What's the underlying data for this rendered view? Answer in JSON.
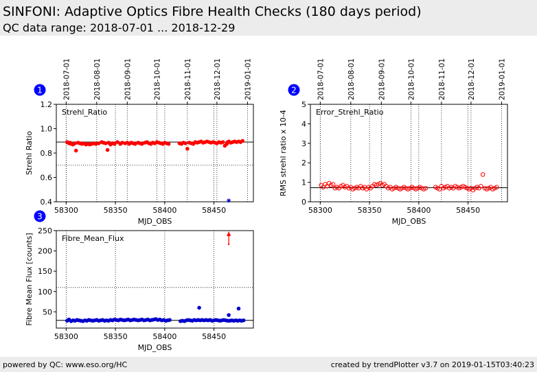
{
  "page": {
    "title": "SINFONI: Adaptive Optics Fibre Health Checks (180 days period)",
    "subtitle": "QC data range: 2018-07-01 ... 2018-12-29",
    "footer_left": "powered by QC: www.eso.org/HC",
    "footer_right": "created by trendPlotter v3.7 on 2019-01-15T03:40:23"
  },
  "colors": {
    "red": "#ff0000",
    "blue": "#0000cc",
    "badge": "#0000ff",
    "header_bg": "#ececec"
  },
  "chart_data": [
    {
      "panel": "1",
      "type": "scatter",
      "inner_label": "Strehl_Ratio",
      "xlabel": "MJD_OBS",
      "ylabel": "Strehl Ratio",
      "xlim": [
        58290,
        58490
      ],
      "ylim": [
        0.4,
        1.2
      ],
      "yticks": [
        0.4,
        0.6,
        0.8,
        1.0,
        1.2
      ],
      "ytick_labels": [
        "0.4",
        "0.6",
        "0.8",
        "1.0",
        "1.2"
      ],
      "xticks": [
        58300,
        58350,
        58400,
        58450
      ],
      "date_ticks": [
        {
          "label": "2018-07-01",
          "mjd": 58300
        },
        {
          "label": "2018-08-01",
          "mjd": 58331
        },
        {
          "label": "2018-09-01",
          "mjd": 58362
        },
        {
          "label": "2018-10-01",
          "mjd": 58392
        },
        {
          "label": "2018-11-01",
          "mjd": 58423
        },
        {
          "label": "2018-12-01",
          "mjd": 58453
        },
        {
          "label": "2019-01-01",
          "mjd": 58484
        }
      ],
      "ref_lines": [
        0.89,
        0.7
      ],
      "grid": true,
      "series": [
        {
          "marker": "filled-circle",
          "color": "#ff0000",
          "x": [
            58301,
            58302,
            58303,
            58304,
            58305,
            58307,
            58309,
            58310,
            58312,
            58314,
            58316,
            58318,
            58320,
            58322,
            58324,
            58326,
            58328,
            58330,
            58333,
            58336,
            58338,
            58340,
            58342,
            58343,
            58345,
            58347,
            58349,
            58352,
            58355,
            58357,
            58360,
            58362,
            58364,
            58366,
            58368,
            58370,
            58373,
            58375,
            58377,
            58380,
            58382,
            58384,
            58386,
            58388,
            58390,
            58392,
            58394,
            58396,
            58398,
            58400,
            58402,
            58404,
            58415,
            58417,
            58419,
            58421,
            58423,
            58425,
            58427,
            58429,
            58431,
            58433,
            58435,
            58437,
            58439,
            58441,
            58443,
            58445,
            58447,
            58449,
            58451,
            58453,
            58455,
            58457,
            58459,
            58461,
            58463,
            58464,
            58465,
            58467,
            58469,
            58471,
            58473,
            58475,
            58477,
            58479
          ],
          "y": [
            0.89,
            0.885,
            0.88,
            0.885,
            0.875,
            0.87,
            0.88,
            0.82,
            0.885,
            0.88,
            0.875,
            0.88,
            0.87,
            0.875,
            0.87,
            0.875,
            0.88,
            0.875,
            0.88,
            0.89,
            0.885,
            0.88,
            0.825,
            0.885,
            0.87,
            0.88,
            0.875,
            0.89,
            0.875,
            0.885,
            0.88,
            0.885,
            0.875,
            0.885,
            0.88,
            0.875,
            0.885,
            0.88,
            0.875,
            0.885,
            0.89,
            0.88,
            0.875,
            0.885,
            0.88,
            0.89,
            0.885,
            0.88,
            0.875,
            0.885,
            0.88,
            0.875,
            0.88,
            0.875,
            0.885,
            0.88,
            0.835,
            0.885,
            0.88,
            0.875,
            0.89,
            0.885,
            0.89,
            0.895,
            0.885,
            0.89,
            0.895,
            0.89,
            0.885,
            0.89,
            0.885,
            0.88,
            0.89,
            0.885,
            0.89,
            0.86,
            0.875,
            0.89,
            0.895,
            0.885,
            0.89,
            0.895,
            0.89,
            0.895,
            0.89,
            0.9
          ]
        },
        {
          "marker": "asterisk",
          "color": "#0000cc",
          "x": [
            58465
          ],
          "y": [
            0.41
          ]
        }
      ]
    },
    {
      "panel": "2",
      "type": "scatter",
      "inner_label": "Error_Strehl_Ratio",
      "xlabel": "MJD_OBS",
      "ylabel": "RMS strehl ratio x 10-4",
      "xlim": [
        58290,
        58490
      ],
      "ylim": [
        0,
        5
      ],
      "yticks": [
        0,
        1,
        2,
        3,
        4,
        5
      ],
      "ytick_labels": [
        "0",
        "1",
        "2",
        "3",
        "4",
        "5"
      ],
      "xticks": [
        58300,
        58350,
        58400,
        58450
      ],
      "date_ticks": [
        {
          "label": "2018-07-01",
          "mjd": 58300
        },
        {
          "label": "2018-08-01",
          "mjd": 58331
        },
        {
          "label": "2018-09-01",
          "mjd": 58362
        },
        {
          "label": "2018-10-01",
          "mjd": 58392
        },
        {
          "label": "2018-11-01",
          "mjd": 58423
        },
        {
          "label": "2018-12-01",
          "mjd": 58453
        },
        {
          "label": "2019-01-01",
          "mjd": 58484
        }
      ],
      "ref_lines": [
        0.72
      ],
      "grid": true,
      "series": [
        {
          "marker": "open-circle",
          "color": "#ff0000",
          "x": [
            58301,
            58303,
            58305,
            58307,
            58309,
            58311,
            58313,
            58315,
            58317,
            58319,
            58321,
            58323,
            58325,
            58327,
            58329,
            58331,
            58333,
            58335,
            58337,
            58339,
            58341,
            58343,
            58345,
            58347,
            58349,
            58351,
            58353,
            58355,
            58357,
            58359,
            58361,
            58363,
            58365,
            58367,
            58369,
            58371,
            58373,
            58375,
            58377,
            58379,
            58381,
            58383,
            58385,
            58387,
            58389,
            58391,
            58393,
            58395,
            58397,
            58399,
            58401,
            58403,
            58405,
            58407,
            58417,
            58419,
            58421,
            58423,
            58425,
            58427,
            58429,
            58431,
            58433,
            58435,
            58437,
            58439,
            58441,
            58443,
            58445,
            58447,
            58449,
            58451,
            58453,
            58455,
            58457,
            58459,
            58461,
            58463,
            58465,
            58467,
            58469,
            58471,
            58473,
            58475,
            58477,
            58479
          ],
          "y": [
            0.85,
            0.75,
            0.9,
            0.8,
            0.95,
            0.85,
            0.9,
            0.7,
            0.75,
            0.7,
            0.8,
            0.85,
            0.75,
            0.8,
            0.7,
            0.75,
            0.65,
            0.7,
            0.75,
            0.7,
            0.8,
            0.7,
            0.75,
            0.65,
            0.75,
            0.7,
            0.8,
            0.9,
            0.85,
            0.9,
            0.95,
            0.85,
            0.9,
            0.8,
            0.7,
            0.75,
            0.65,
            0.7,
            0.75,
            0.7,
            0.65,
            0.7,
            0.75,
            0.7,
            0.65,
            0.7,
            0.75,
            0.7,
            0.65,
            0.7,
            0.75,
            0.7,
            0.65,
            0.7,
            0.75,
            0.7,
            0.65,
            0.8,
            0.7,
            0.75,
            0.8,
            0.7,
            0.75,
            0.7,
            0.8,
            0.75,
            0.7,
            0.75,
            0.8,
            0.75,
            0.7,
            0.65,
            0.7,
            0.6,
            0.7,
            0.75,
            0.7,
            0.8,
            1.4,
            0.7,
            0.65,
            0.7,
            0.75,
            0.65,
            0.7,
            0.75
          ]
        }
      ]
    },
    {
      "panel": "3",
      "type": "scatter",
      "inner_label": "Fibre_Mean_Flux",
      "xlabel": "MJD_OBS",
      "ylabel": "Fibre Mean Flux [counts]",
      "xlim": [
        58290,
        58490
      ],
      "ylim": [
        10,
        250
      ],
      "yticks": [
        50,
        100,
        150,
        200,
        250
      ],
      "ytick_labels": [
        "50",
        "100",
        "150",
        "200",
        "250"
      ],
      "xticks": [
        58300,
        58350,
        58400,
        58450
      ],
      "ref_lines": [
        110,
        29
      ],
      "grid": true,
      "series": [
        {
          "marker": "filled-circle",
          "color": "#0000cc",
          "x": [
            58301,
            58302,
            58303,
            58305,
            58307,
            58309,
            58311,
            58313,
            58315,
            58317,
            58319,
            58321,
            58323,
            58325,
            58327,
            58329,
            58331,
            58333,
            58335,
            58337,
            58339,
            58341,
            58343,
            58345,
            58347,
            58349,
            58351,
            58353,
            58355,
            58357,
            58359,
            58361,
            58363,
            58365,
            58367,
            58369,
            58371,
            58373,
            58375,
            58377,
            58379,
            58381,
            58383,
            58385,
            58387,
            58389,
            58391,
            58393,
            58395,
            58397,
            58399,
            58401,
            58403,
            58405,
            58416,
            58418,
            58420,
            58422,
            58424,
            58426,
            58428,
            58430,
            58432,
            58434,
            58435,
            58436,
            58438,
            58440,
            58442,
            58444,
            58446,
            58448,
            58450,
            58452,
            58454,
            58456,
            58458,
            58460,
            58462,
            58464,
            58465,
            58466,
            58468,
            58470,
            58472,
            58474,
            58475,
            58476,
            58478,
            58480
          ],
          "y": [
            28,
            30,
            31,
            27,
            29,
            28,
            30,
            29,
            28,
            27,
            29,
            28,
            30,
            29,
            28,
            29,
            30,
            28,
            29,
            30,
            28,
            29,
            28,
            30,
            29,
            31,
            30,
            29,
            31,
            30,
            29,
            30,
            31,
            29,
            30,
            31,
            30,
            29,
            30,
            31,
            29,
            30,
            31,
            29,
            30,
            31,
            32,
            30,
            31,
            29,
            30,
            28,
            29,
            30,
            27,
            28,
            27,
            29,
            30,
            29,
            28,
            30,
            29,
            30,
            60,
            29,
            30,
            29,
            30,
            29,
            30,
            28,
            29,
            30,
            29,
            28,
            29,
            30,
            29,
            28,
            42,
            28,
            29,
            28,
            29,
            28,
            58,
            29,
            28,
            29
          ]
        }
      ],
      "annotations": [
        {
          "type": "up-arrow",
          "color": "#ff0000",
          "x": 58465
        }
      ]
    }
  ]
}
